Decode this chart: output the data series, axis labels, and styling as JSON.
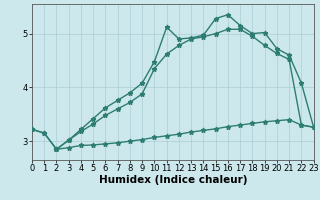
{
  "title": "",
  "xlabel": "Humidex (Indice chaleur)",
  "ylabel": "",
  "bg_color": "#cce8ec",
  "grid_color": "#aacdd4",
  "line_color": "#2e7d72",
  "line1_x": [
    0,
    1,
    2,
    3,
    4,
    5,
    6,
    7,
    8,
    9,
    10,
    11,
    12,
    13,
    14,
    15,
    16,
    17,
    18,
    19,
    20,
    21,
    22,
    23
  ],
  "line1_y": [
    3.22,
    3.15,
    2.85,
    2.88,
    2.92,
    2.93,
    2.95,
    2.97,
    3.0,
    3.03,
    3.07,
    3.1,
    3.13,
    3.17,
    3.2,
    3.23,
    3.27,
    3.3,
    3.33,
    3.36,
    3.38,
    3.4,
    3.3,
    3.26
  ],
  "line2_x": [
    0,
    1,
    2,
    3,
    4,
    5,
    6,
    7,
    8,
    9,
    10,
    11,
    12,
    13,
    14,
    15,
    16,
    17,
    18,
    19,
    20,
    21,
    22,
    23
  ],
  "line2_y": [
    3.22,
    3.15,
    2.85,
    3.02,
    3.18,
    3.32,
    3.48,
    3.6,
    3.72,
    3.88,
    4.35,
    4.62,
    4.78,
    4.9,
    4.94,
    5.0,
    5.08,
    5.08,
    4.95,
    4.78,
    4.63,
    4.52,
    3.3,
    3.26
  ],
  "line3_x": [
    2,
    3,
    4,
    5,
    6,
    7,
    8,
    9,
    10,
    11,
    12,
    13,
    14,
    15,
    16,
    17,
    18,
    19,
    20,
    21,
    22,
    23
  ],
  "line3_y": [
    2.85,
    3.02,
    3.22,
    3.42,
    3.62,
    3.76,
    3.9,
    4.08,
    4.48,
    5.12,
    4.9,
    4.92,
    4.97,
    5.28,
    5.35,
    5.15,
    5.0,
    5.02,
    4.72,
    4.6,
    4.08,
    3.26
  ],
  "xlim": [
    0,
    23
  ],
  "ylim": [
    2.65,
    5.55
  ],
  "yticks": [
    3,
    4,
    5
  ],
  "xticks": [
    0,
    1,
    2,
    3,
    4,
    5,
    6,
    7,
    8,
    9,
    10,
    11,
    12,
    13,
    14,
    15,
    16,
    17,
    18,
    19,
    20,
    21,
    22,
    23
  ],
  "marker": "*",
  "markersize": 3.5,
  "linewidth": 1.0,
  "xlabel_fontsize": 7.5,
  "tick_fontsize": 6.0
}
